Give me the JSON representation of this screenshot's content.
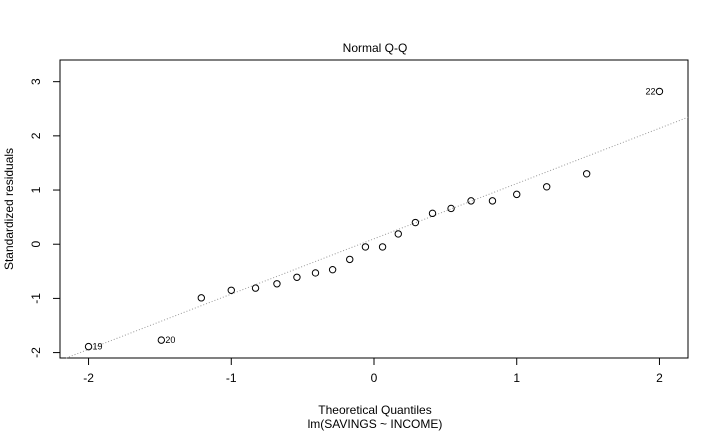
{
  "chart_data": {
    "type": "scatter",
    "title": "Normal Q-Q",
    "xlabel": "Theoretical Quantiles",
    "ylabel": "Standardized residuals",
    "subtitle": "lm(SAVINGS ~ INCOME)",
    "xlim": [
      -2.2,
      2.2
    ],
    "ylim": [
      -2.1,
      3.4
    ],
    "xticks": [
      -2,
      -1,
      0,
      1,
      2
    ],
    "xtick_labels": [
      "-2",
      "-1",
      "0",
      "1",
      "2"
    ],
    "yticks": [
      -2,
      -1,
      0,
      1,
      2,
      3
    ],
    "ytick_labels": [
      "-2",
      "-1",
      "0",
      "1",
      "2",
      "3"
    ],
    "grid": false,
    "points": [
      {
        "x": -2.0,
        "y": -1.89,
        "label": "19"
      },
      {
        "x": -1.49,
        "y": -1.77,
        "label": "20"
      },
      {
        "x": -1.21,
        "y": -0.99
      },
      {
        "x": -1.0,
        "y": -0.85
      },
      {
        "x": -0.83,
        "y": -0.81
      },
      {
        "x": -0.68,
        "y": -0.73
      },
      {
        "x": -0.54,
        "y": -0.61
      },
      {
        "x": -0.41,
        "y": -0.53
      },
      {
        "x": -0.29,
        "y": -0.47
      },
      {
        "x": -0.17,
        "y": -0.28
      },
      {
        "x": -0.06,
        "y": -0.05
      },
      {
        "x": 0.06,
        "y": -0.05
      },
      {
        "x": 0.17,
        "y": 0.19
      },
      {
        "x": 0.29,
        "y": 0.4
      },
      {
        "x": 0.41,
        "y": 0.57
      },
      {
        "x": 0.54,
        "y": 0.66
      },
      {
        "x": 0.68,
        "y": 0.8
      },
      {
        "x": 0.83,
        "y": 0.8
      },
      {
        "x": 1.0,
        "y": 0.92
      },
      {
        "x": 1.21,
        "y": 1.06
      },
      {
        "x": 1.49,
        "y": 1.3
      },
      {
        "x": 2.0,
        "y": 2.82,
        "label": "22"
      }
    ],
    "reference_line": {
      "intercept": 0.1,
      "slope": 1.02,
      "style": "dotted",
      "color": "#999999"
    }
  }
}
